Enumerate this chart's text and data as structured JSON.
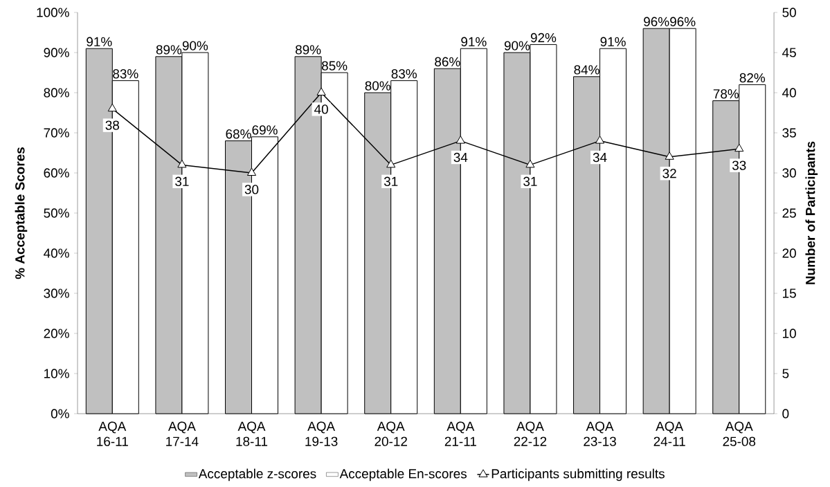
{
  "chart_data": {
    "type": "bar",
    "ylabel": "% Acceptable Scores",
    "y2label": "Number of Participants",
    "categories": [
      "AQA 16-11",
      "AQA 17-14",
      "AQA 18-11",
      "AQA 19-13",
      "AQA 20-12",
      "AQA 21-11",
      "AQA 22-12",
      "AQA 23-13",
      "AQA 24-11",
      "AQA 25-08"
    ],
    "series": [
      {
        "name": "Acceptable z-scores",
        "color": "#c0c0c0",
        "values": [
          91,
          89,
          68,
          89,
          80,
          86,
          90,
          84,
          96,
          78
        ],
        "value_labels": [
          "91%",
          "89%",
          "68%",
          "89%",
          "80%",
          "86%",
          "90%",
          "84%",
          "96%",
          "78%"
        ]
      },
      {
        "name": "Acceptable En-scores",
        "color": "#ffffff",
        "values": [
          83,
          90,
          69,
          85,
          83,
          91,
          92,
          91,
          96,
          82
        ],
        "value_labels": [
          "83%",
          "90%",
          "69%",
          "85%",
          "83%",
          "91%",
          "92%",
          "91%",
          "96%",
          "82%"
        ]
      },
      {
        "name": "Participants submitting results",
        "type": "line",
        "axis": "y2",
        "color": "#000000",
        "marker": "triangle",
        "line_style": "solid",
        "values": [
          38,
          31,
          30,
          40,
          31,
          34,
          31,
          34,
          32,
          33
        ],
        "value_labels": [
          "38",
          "31",
          "30",
          "40",
          "31",
          "34",
          "31",
          "34",
          "32",
          "33"
        ]
      }
    ],
    "ylim": [
      0,
      100
    ],
    "yticks": [
      {
        "value": 0,
        "label": "0%"
      },
      {
        "value": 10,
        "label": "10%"
      },
      {
        "value": 20,
        "label": "20%"
      },
      {
        "value": 30,
        "label": "30%"
      },
      {
        "value": 40,
        "label": "40%"
      },
      {
        "value": 50,
        "label": "50%"
      },
      {
        "value": 60,
        "label": "60%"
      },
      {
        "value": 70,
        "label": "70%"
      },
      {
        "value": 80,
        "label": "80%"
      },
      {
        "value": 90,
        "label": "90%"
      },
      {
        "value": 100,
        "label": "100%"
      }
    ],
    "y2lim": [
      0,
      50
    ],
    "y2ticks": [
      0,
      5,
      10,
      15,
      20,
      25,
      30,
      35,
      40,
      45,
      50
    ],
    "grid": false,
    "legend": "bottom"
  }
}
